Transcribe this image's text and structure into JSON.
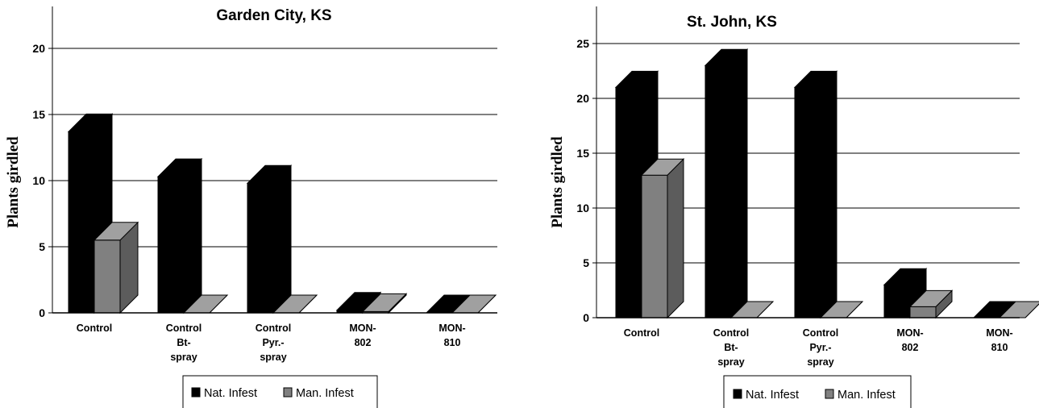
{
  "chart_data": [
    {
      "type": "bar",
      "title": "Garden City, KS",
      "ylabel": "Plants girdled",
      "xlabel": "",
      "ylim": [
        0,
        20
      ],
      "yticks": [
        "0",
        "5",
        "10",
        "15",
        "20"
      ],
      "grid": true,
      "categories": [
        [
          "Control"
        ],
        [
          "Control",
          "Bt-",
          "spray"
        ],
        [
          "Control",
          "Pyr.-",
          "spray"
        ],
        [
          "MON-",
          "802"
        ],
        [
          "MON-",
          "810"
        ]
      ],
      "series": [
        {
          "name": "Nat. Infest",
          "color": "#000000",
          "values": [
            13.7,
            10.3,
            9.8,
            0.2,
            0
          ]
        },
        {
          "name": "Man. Infest",
          "color": "#808080",
          "values": [
            5.5,
            0,
            0,
            0.1,
            0
          ]
        }
      ],
      "legend": {
        "placement": "bottom-center",
        "entries": [
          "Nat. Infest",
          "Man. Infest"
        ]
      }
    },
    {
      "type": "bar",
      "title": "St. John, KS",
      "ylabel": "Plants girdled",
      "xlabel": "",
      "ylim": [
        0,
        25
      ],
      "yticks": [
        "0",
        "5",
        "10",
        "15",
        "20",
        "25"
      ],
      "grid": true,
      "categories": [
        [
          "Control"
        ],
        [
          "Control",
          "Bt-",
          "spray"
        ],
        [
          "Control",
          "Pyr.-",
          "spray"
        ],
        [
          "MON-",
          "802"
        ],
        [
          "MON-",
          "810"
        ]
      ],
      "series": [
        {
          "name": "Nat. Infest",
          "color": "#000000",
          "values": [
            21,
            23,
            21,
            3,
            0
          ]
        },
        {
          "name": "Man. Infest",
          "color": "#808080",
          "values": [
            13,
            0,
            0,
            1,
            0
          ]
        }
      ],
      "legend": {
        "placement": "bottom-center",
        "entries": [
          "Nat. Infest",
          "Man. Infest"
        ]
      }
    }
  ]
}
